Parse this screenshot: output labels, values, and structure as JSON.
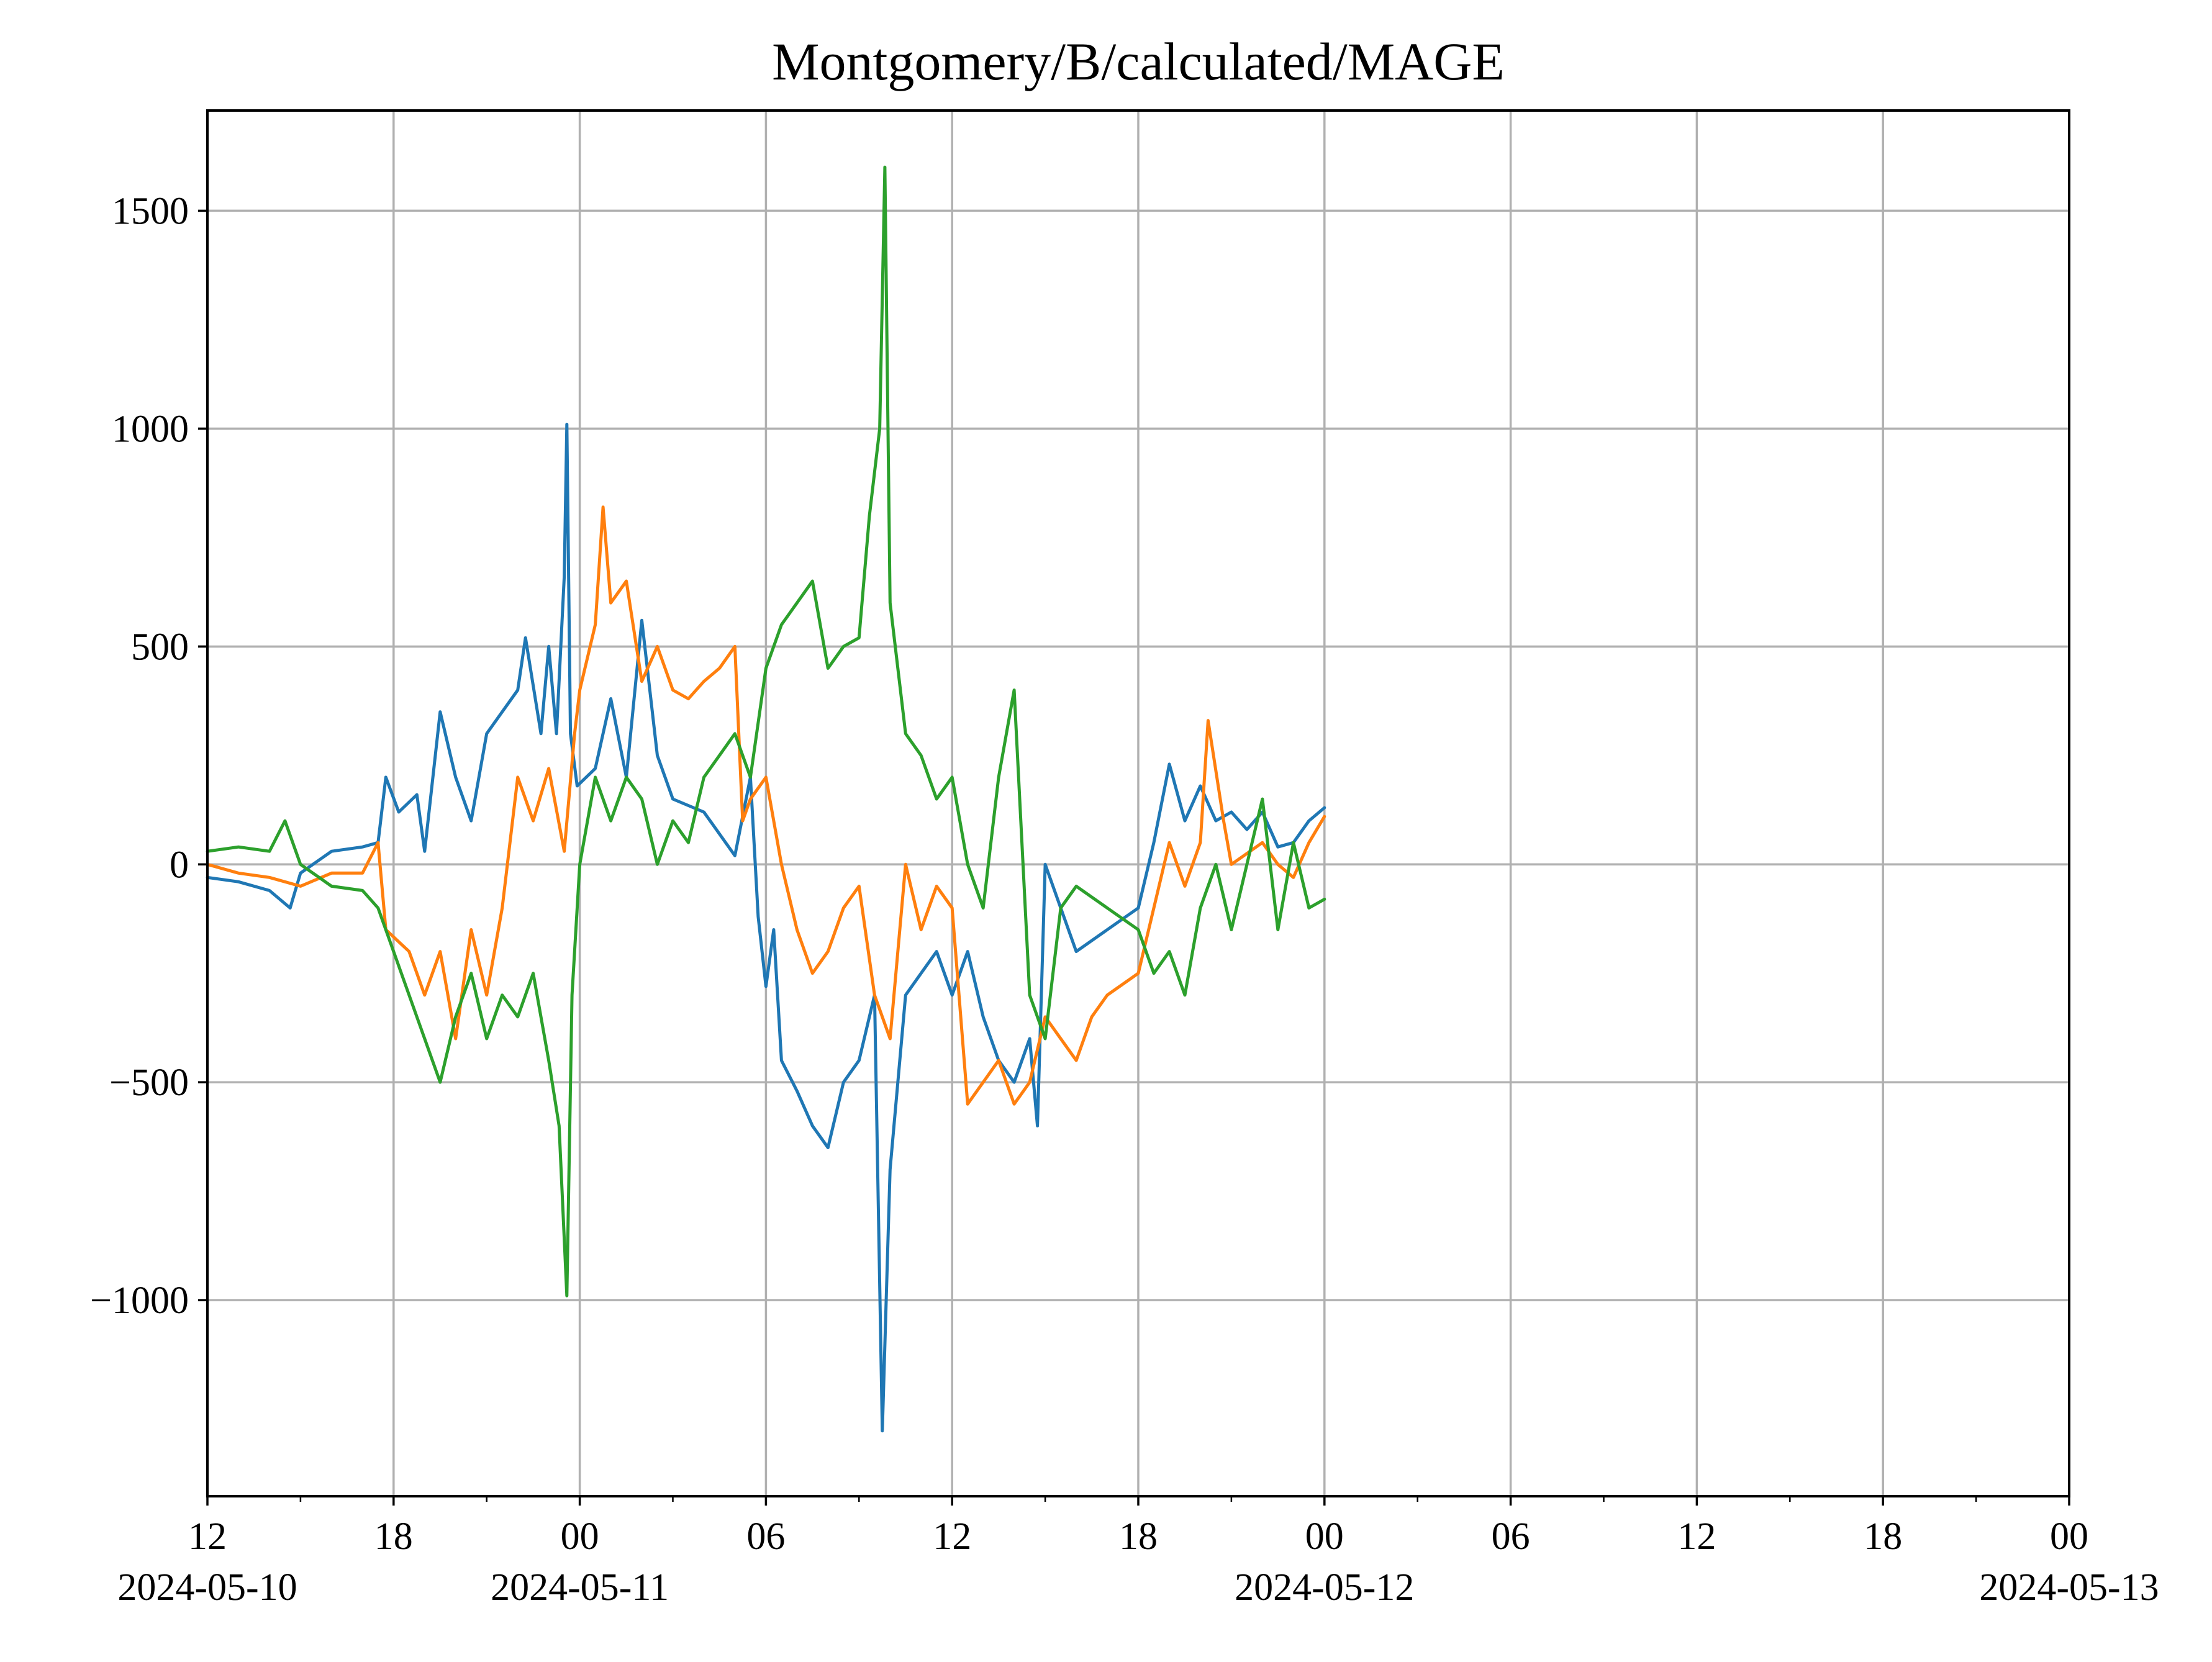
{
  "chart_data": {
    "type": "line",
    "title": "Montgomery/B/calculated/MAGE",
    "xlabel": "",
    "ylabel": "",
    "grid": true,
    "x_unit": "datetime",
    "xlim": [
      "2024-05-10T12:00",
      "2024-05-13T00:00"
    ],
    "ylim": [
      -1450,
      1730
    ],
    "x_ticks": [
      {
        "value": "2024-05-10T12:00",
        "label": "12",
        "date_label": "2024-05-10"
      },
      {
        "value": "2024-05-10T18:00",
        "label": "18",
        "date_label": ""
      },
      {
        "value": "2024-05-11T00:00",
        "label": "00",
        "date_label": "2024-05-11"
      },
      {
        "value": "2024-05-11T06:00",
        "label": "06",
        "date_label": ""
      },
      {
        "value": "2024-05-11T12:00",
        "label": "12",
        "date_label": ""
      },
      {
        "value": "2024-05-11T18:00",
        "label": "18",
        "date_label": ""
      },
      {
        "value": "2024-05-12T00:00",
        "label": "00",
        "date_label": "2024-05-12"
      },
      {
        "value": "2024-05-12T06:00",
        "label": "06",
        "date_label": ""
      },
      {
        "value": "2024-05-12T12:00",
        "label": "12",
        "date_label": ""
      },
      {
        "value": "2024-05-12T18:00",
        "label": "18",
        "date_label": ""
      },
      {
        "value": "2024-05-13T00:00",
        "label": "00",
        "date_label": "2024-05-13"
      }
    ],
    "x_minor_ticks": [
      "2024-05-10T15:00",
      "2024-05-10T21:00",
      "2024-05-11T03:00",
      "2024-05-11T09:00",
      "2024-05-11T15:00",
      "2024-05-11T21:00",
      "2024-05-12T03:00",
      "2024-05-12T09:00",
      "2024-05-12T15:00",
      "2024-05-12T21:00"
    ],
    "y_ticks": [
      {
        "value": -1000,
        "label": "−1000"
      },
      {
        "value": -500,
        "label": "−500"
      },
      {
        "value": 0,
        "label": "0"
      },
      {
        "value": 500,
        "label": "500"
      },
      {
        "value": 1000,
        "label": "1000"
      },
      {
        "value": 1500,
        "label": "1500"
      }
    ],
    "series": [
      {
        "color": "#1f77b4",
        "points": [
          [
            "2024-05-10T12:00",
            -30
          ],
          [
            "2024-05-10T13:00",
            -40
          ],
          [
            "2024-05-10T14:00",
            -60
          ],
          [
            "2024-05-10T14:40",
            -100
          ],
          [
            "2024-05-10T15:00",
            -20
          ],
          [
            "2024-05-10T16:00",
            30
          ],
          [
            "2024-05-10T17:00",
            40
          ],
          [
            "2024-05-10T17:30",
            50
          ],
          [
            "2024-05-10T17:45",
            200
          ],
          [
            "2024-05-10T18:10",
            120
          ],
          [
            "2024-05-10T18:45",
            160
          ],
          [
            "2024-05-10T19:00",
            30
          ],
          [
            "2024-05-10T19:30",
            350
          ],
          [
            "2024-05-10T20:00",
            200
          ],
          [
            "2024-05-10T20:30",
            100
          ],
          [
            "2024-05-10T21:00",
            300
          ],
          [
            "2024-05-10T21:30",
            350
          ],
          [
            "2024-05-10T22:00",
            400
          ],
          [
            "2024-05-10T22:15",
            520
          ],
          [
            "2024-05-10T22:45",
            300
          ],
          [
            "2024-05-10T23:00",
            500
          ],
          [
            "2024-05-10T23:15",
            300
          ],
          [
            "2024-05-10T23:30",
            660
          ],
          [
            "2024-05-10T23:35",
            1010
          ],
          [
            "2024-05-10T23:42",
            300
          ],
          [
            "2024-05-10T23:55",
            180
          ],
          [
            "2024-05-11T00:30",
            220
          ],
          [
            "2024-05-11T01:00",
            380
          ],
          [
            "2024-05-11T01:30",
            200
          ],
          [
            "2024-05-11T02:00",
            560
          ],
          [
            "2024-05-11T02:30",
            250
          ],
          [
            "2024-05-11T03:00",
            150
          ],
          [
            "2024-05-11T04:00",
            120
          ],
          [
            "2024-05-11T05:00",
            20
          ],
          [
            "2024-05-11T05:30",
            200
          ],
          [
            "2024-05-11T05:45",
            -120
          ],
          [
            "2024-05-11T06:00",
            -280
          ],
          [
            "2024-05-11T06:15",
            -150
          ],
          [
            "2024-05-11T06:30",
            -450
          ],
          [
            "2024-05-11T07:00",
            -520
          ],
          [
            "2024-05-11T07:30",
            -600
          ],
          [
            "2024-05-11T08:00",
            -650
          ],
          [
            "2024-05-11T08:30",
            -500
          ],
          [
            "2024-05-11T09:00",
            -450
          ],
          [
            "2024-05-11T09:30",
            -300
          ],
          [
            "2024-05-11T09:45",
            -1300
          ],
          [
            "2024-05-11T10:00",
            -700
          ],
          [
            "2024-05-11T10:30",
            -300
          ],
          [
            "2024-05-11T11:00",
            -250
          ],
          [
            "2024-05-11T11:30",
            -200
          ],
          [
            "2024-05-11T12:00",
            -300
          ],
          [
            "2024-05-11T12:30",
            -200
          ],
          [
            "2024-05-11T13:00",
            -350
          ],
          [
            "2024-05-11T13:30",
            -450
          ],
          [
            "2024-05-11T14:00",
            -500
          ],
          [
            "2024-05-11T14:30",
            -400
          ],
          [
            "2024-05-11T14:45",
            -600
          ],
          [
            "2024-05-11T15:00",
            0
          ],
          [
            "2024-05-11T15:30",
            -100
          ],
          [
            "2024-05-11T16:00",
            -200
          ],
          [
            "2024-05-11T17:00",
            -150
          ],
          [
            "2024-05-11T18:00",
            -100
          ],
          [
            "2024-05-11T18:30",
            50
          ],
          [
            "2024-05-11T19:00",
            230
          ],
          [
            "2024-05-11T19:30",
            100
          ],
          [
            "2024-05-11T20:00",
            180
          ],
          [
            "2024-05-11T20:30",
            100
          ],
          [
            "2024-05-11T21:00",
            120
          ],
          [
            "2024-05-11T21:30",
            80
          ],
          [
            "2024-05-11T22:00",
            120
          ],
          [
            "2024-05-11T22:30",
            40
          ],
          [
            "2024-05-11T23:00",
            50
          ],
          [
            "2024-05-11T23:30",
            100
          ],
          [
            "2024-05-12T00:00",
            130
          ]
        ]
      },
      {
        "color": "#ff7f0e",
        "points": [
          [
            "2024-05-10T12:00",
            0
          ],
          [
            "2024-05-10T13:00",
            -20
          ],
          [
            "2024-05-10T14:00",
            -30
          ],
          [
            "2024-05-10T15:00",
            -50
          ],
          [
            "2024-05-10T16:00",
            -20
          ],
          [
            "2024-05-10T17:00",
            -20
          ],
          [
            "2024-05-10T17:30",
            50
          ],
          [
            "2024-05-10T17:45",
            -150
          ],
          [
            "2024-05-10T18:30",
            -200
          ],
          [
            "2024-05-10T19:00",
            -300
          ],
          [
            "2024-05-10T19:30",
            -200
          ],
          [
            "2024-05-10T20:00",
            -400
          ],
          [
            "2024-05-10T20:30",
            -150
          ],
          [
            "2024-05-10T21:00",
            -300
          ],
          [
            "2024-05-10T21:30",
            -100
          ],
          [
            "2024-05-10T22:00",
            200
          ],
          [
            "2024-05-10T22:30",
            100
          ],
          [
            "2024-05-10T23:00",
            220
          ],
          [
            "2024-05-10T23:30",
            30
          ],
          [
            "2024-05-10T23:50",
            300
          ],
          [
            "2024-05-11T00:00",
            400
          ],
          [
            "2024-05-11T00:30",
            550
          ],
          [
            "2024-05-11T00:45",
            820
          ],
          [
            "2024-05-11T01:00",
            600
          ],
          [
            "2024-05-11T01:30",
            650
          ],
          [
            "2024-05-11T02:00",
            420
          ],
          [
            "2024-05-11T02:30",
            500
          ],
          [
            "2024-05-11T03:00",
            400
          ],
          [
            "2024-05-11T03:30",
            380
          ],
          [
            "2024-05-11T04:00",
            420
          ],
          [
            "2024-05-11T04:30",
            450
          ],
          [
            "2024-05-11T05:00",
            500
          ],
          [
            "2024-05-11T05:15",
            100
          ],
          [
            "2024-05-11T05:30",
            150
          ],
          [
            "2024-05-11T06:00",
            200
          ],
          [
            "2024-05-11T06:30",
            0
          ],
          [
            "2024-05-11T07:00",
            -150
          ],
          [
            "2024-05-11T07:30",
            -250
          ],
          [
            "2024-05-11T08:00",
            -200
          ],
          [
            "2024-05-11T08:30",
            -100
          ],
          [
            "2024-05-11T09:00",
            -50
          ],
          [
            "2024-05-11T09:30",
            -300
          ],
          [
            "2024-05-11T10:00",
            -400
          ],
          [
            "2024-05-11T10:30",
            0
          ],
          [
            "2024-05-11T11:00",
            -150
          ],
          [
            "2024-05-11T11:30",
            -50
          ],
          [
            "2024-05-11T12:00",
            -100
          ],
          [
            "2024-05-11T12:30",
            -550
          ],
          [
            "2024-05-11T13:00",
            -500
          ],
          [
            "2024-05-11T13:30",
            -450
          ],
          [
            "2024-05-11T14:00",
            -550
          ],
          [
            "2024-05-11T14:30",
            -500
          ],
          [
            "2024-05-11T15:00",
            -350
          ],
          [
            "2024-05-11T15:30",
            -400
          ],
          [
            "2024-05-11T16:00",
            -450
          ],
          [
            "2024-05-11T16:30",
            -350
          ],
          [
            "2024-05-11T17:00",
            -300
          ],
          [
            "2024-05-11T18:00",
            -250
          ],
          [
            "2024-05-11T18:30",
            -100
          ],
          [
            "2024-05-11T19:00",
            50
          ],
          [
            "2024-05-11T19:30",
            -50
          ],
          [
            "2024-05-11T20:00",
            50
          ],
          [
            "2024-05-11T20:15",
            330
          ],
          [
            "2024-05-11T20:45",
            100
          ],
          [
            "2024-05-11T21:00",
            0
          ],
          [
            "2024-05-11T22:00",
            50
          ],
          [
            "2024-05-11T22:30",
            0
          ],
          [
            "2024-05-11T23:00",
            -30
          ],
          [
            "2024-05-11T23:30",
            50
          ],
          [
            "2024-05-12T00:00",
            110
          ]
        ]
      },
      {
        "color": "#2ca02c",
        "points": [
          [
            "2024-05-10T12:00",
            30
          ],
          [
            "2024-05-10T13:00",
            40
          ],
          [
            "2024-05-10T14:00",
            30
          ],
          [
            "2024-05-10T14:30",
            100
          ],
          [
            "2024-05-10T15:00",
            0
          ],
          [
            "2024-05-10T16:00",
            -50
          ],
          [
            "2024-05-10T17:00",
            -60
          ],
          [
            "2024-05-10T17:30",
            -100
          ],
          [
            "2024-05-10T18:00",
            -200
          ],
          [
            "2024-05-10T18:30",
            -300
          ],
          [
            "2024-05-10T19:00",
            -400
          ],
          [
            "2024-05-10T19:30",
            -500
          ],
          [
            "2024-05-10T20:00",
            -350
          ],
          [
            "2024-05-10T20:30",
            -250
          ],
          [
            "2024-05-10T21:00",
            -400
          ],
          [
            "2024-05-10T21:30",
            -300
          ],
          [
            "2024-05-10T22:00",
            -350
          ],
          [
            "2024-05-10T22:30",
            -250
          ],
          [
            "2024-05-10T23:00",
            -450
          ],
          [
            "2024-05-10T23:20",
            -600
          ],
          [
            "2024-05-10T23:35",
            -990
          ],
          [
            "2024-05-10T23:45",
            -300
          ],
          [
            "2024-05-11T00:00",
            0
          ],
          [
            "2024-05-11T00:30",
            200
          ],
          [
            "2024-05-11T01:00",
            100
          ],
          [
            "2024-05-11T01:30",
            200
          ],
          [
            "2024-05-11T02:00",
            150
          ],
          [
            "2024-05-11T02:30",
            0
          ],
          [
            "2024-05-11T03:00",
            100
          ],
          [
            "2024-05-11T03:30",
            50
          ],
          [
            "2024-05-11T04:00",
            200
          ],
          [
            "2024-05-11T04:30",
            250
          ],
          [
            "2024-05-11T05:00",
            300
          ],
          [
            "2024-05-11T05:30",
            200
          ],
          [
            "2024-05-11T06:00",
            450
          ],
          [
            "2024-05-11T06:30",
            550
          ],
          [
            "2024-05-11T07:00",
            600
          ],
          [
            "2024-05-11T07:30",
            650
          ],
          [
            "2024-05-11T08:00",
            450
          ],
          [
            "2024-05-11T08:30",
            500
          ],
          [
            "2024-05-11T09:00",
            520
          ],
          [
            "2024-05-11T09:20",
            800
          ],
          [
            "2024-05-11T09:40",
            1000
          ],
          [
            "2024-05-11T09:50",
            1600
          ],
          [
            "2024-05-11T10:00",
            600
          ],
          [
            "2024-05-11T10:30",
            300
          ],
          [
            "2024-05-11T11:00",
            250
          ],
          [
            "2024-05-11T11:30",
            150
          ],
          [
            "2024-05-11T12:00",
            200
          ],
          [
            "2024-05-11T12:30",
            0
          ],
          [
            "2024-05-11T13:00",
            -100
          ],
          [
            "2024-05-11T13:30",
            200
          ],
          [
            "2024-05-11T14:00",
            400
          ],
          [
            "2024-05-11T14:30",
            -300
          ],
          [
            "2024-05-11T15:00",
            -400
          ],
          [
            "2024-05-11T15:30",
            -100
          ],
          [
            "2024-05-11T16:00",
            -50
          ],
          [
            "2024-05-11T17:00",
            -100
          ],
          [
            "2024-05-11T18:00",
            -150
          ],
          [
            "2024-05-11T18:30",
            -250
          ],
          [
            "2024-05-11T19:00",
            -200
          ],
          [
            "2024-05-11T19:30",
            -300
          ],
          [
            "2024-05-11T20:00",
            -100
          ],
          [
            "2024-05-11T20:30",
            0
          ],
          [
            "2024-05-11T21:00",
            -150
          ],
          [
            "2024-05-11T21:30",
            0
          ],
          [
            "2024-05-11T22:00",
            150
          ],
          [
            "2024-05-11T22:30",
            -150
          ],
          [
            "2024-05-11T23:00",
            50
          ],
          [
            "2024-05-11T23:30",
            -100
          ],
          [
            "2024-05-12T00:00",
            -80
          ]
        ]
      }
    ]
  }
}
